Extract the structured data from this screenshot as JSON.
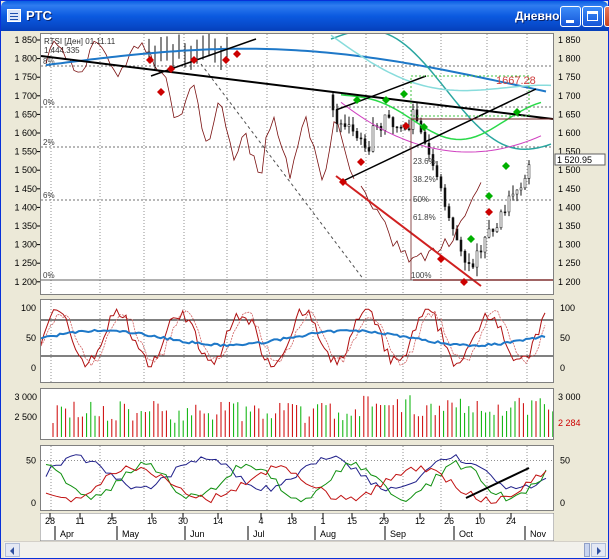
{
  "window": {
    "title": "РТС",
    "period": "Дневной"
  },
  "colors": {
    "bull": "#00b000",
    "bear": "#cc0000",
    "ma_blue": "#1e78c8",
    "ma_teal": "#2aa6a0",
    "ma_green": "#2ad94a"
  },
  "price_panel": {
    "info_lines": [
      "RTSI [Ден] 01.11.11",
      "1 444.335"
    ],
    "fib_labels": [
      "8%",
      "0%",
      "2%",
      "6%",
      "0%"
    ],
    "fib_retracements": [
      "23.6%",
      "38.2%",
      "50%",
      "61.8%",
      "100%"
    ],
    "peak_label": "1667.28",
    "current_value": "1 520.95",
    "y_ticks": [
      "1 850",
      "1 800",
      "1 750",
      "1 700",
      "1 650",
      "1 600",
      "1 550",
      "1 500",
      "1 450",
      "1 400",
      "1 350",
      "1 300",
      "1 250",
      "1 200"
    ]
  },
  "oscillator_panel": {
    "y_ticks": [
      "100",
      "50",
      "0"
    ]
  },
  "volume_panel": {
    "y_ticks": [
      "3 000",
      "2 500"
    ],
    "current_value": "2 284"
  },
  "adx_panel": {
    "y_ticks": [
      "50",
      "0"
    ]
  },
  "x_axis": {
    "day_ticks": [
      "28",
      "11",
      "25",
      "16",
      "30",
      "14",
      "4",
      "18",
      "1",
      "15",
      "29",
      "12",
      "26",
      "10",
      "24"
    ],
    "month_labels": [
      "Apr",
      "May",
      "Jun",
      "Jul",
      "Aug",
      "Sep",
      "Oct",
      "Nov"
    ]
  }
}
